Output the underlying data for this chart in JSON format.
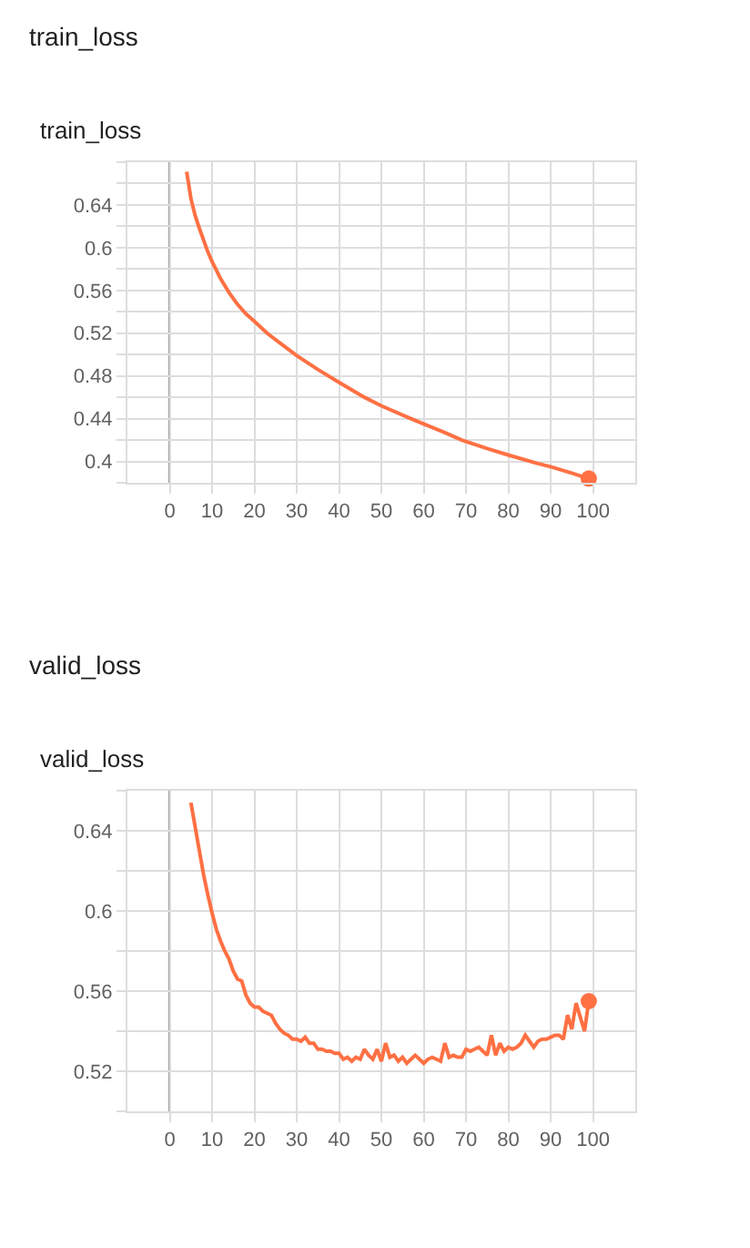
{
  "chart_data": [
    {
      "type": "line",
      "title": "train_loss",
      "subtitle": "train_loss",
      "x": [
        4,
        5,
        6,
        7,
        8,
        9,
        10,
        12,
        14,
        16,
        18,
        20,
        23,
        26,
        30,
        35,
        40,
        46,
        50,
        57,
        60,
        65,
        69,
        75,
        80,
        87,
        90,
        95,
        99
      ],
      "series": [
        {
          "color": "#ff7043",
          "values": [
            0.671,
            0.646,
            0.63,
            0.618,
            0.607,
            0.596,
            0.587,
            0.571,
            0.558,
            0.547,
            0.538,
            0.531,
            0.52,
            0.511,
            0.499,
            0.486,
            0.474,
            0.46,
            0.452,
            0.44,
            0.435,
            0.427,
            0.42,
            0.412,
            0.406,
            0.398,
            0.395,
            0.389,
            0.384
          ]
        },
        {
          "type": "scatter",
          "x": [
            99
          ],
          "values": [
            0.384
          ],
          "color": "#ff7043",
          "marker": "circle"
        }
      ],
      "xlim": [
        -10,
        110
      ],
      "xticks": [
        0,
        10,
        20,
        30,
        40,
        50,
        60,
        70,
        80,
        90,
        100
      ],
      "ylim": [
        0.38,
        0.68
      ],
      "yticks": [
        {
          "value": 0.38,
          "label": null
        },
        0.4,
        {
          "value": 0.42,
          "label": null
        },
        0.44,
        {
          "value": 0.46,
          "label": null
        },
        0.48,
        {
          "value": 0.5,
          "label": null
        },
        0.52,
        {
          "value": 0.54,
          "label": null
        },
        0.56,
        {
          "value": 0.58,
          "label": null
        },
        0.6,
        {
          "value": 0.62,
          "label": null
        },
        0.64,
        {
          "value": 0.66,
          "label": null
        },
        {
          "value": 0.68,
          "label": null
        }
      ],
      "grid": true,
      "ref_lines": [
        {
          "axis": "x",
          "value": 0,
          "color": "#9e9e9e"
        }
      ]
    },
    {
      "type": "line",
      "title": "valid_loss",
      "subtitle": "valid_loss",
      "x": [
        5,
        6,
        7,
        8,
        9,
        10,
        11,
        12,
        13,
        14,
        15,
        16,
        17,
        18,
        19,
        20,
        21,
        22,
        23,
        24,
        25,
        26,
        27,
        28,
        29,
        30,
        31,
        32,
        33,
        34,
        35,
        36,
        37,
        38,
        39,
        40,
        41,
        42,
        43,
        44,
        45,
        46,
        47,
        48,
        49,
        50,
        51,
        52,
        53,
        54,
        55,
        56,
        57,
        58,
        59,
        60,
        61,
        62,
        63,
        64,
        65,
        66,
        67,
        68,
        69,
        70,
        71,
        72,
        73,
        74,
        75,
        76,
        77,
        78,
        79,
        80,
        81,
        82,
        83,
        84,
        85,
        86,
        87,
        88,
        89,
        90,
        91,
        92,
        93,
        94,
        95,
        96,
        97,
        98,
        99
      ],
      "series": [
        {
          "color": "#ff7043",
          "values": [
            0.654,
            0.642,
            0.63,
            0.618,
            0.608,
            0.599,
            0.591,
            0.585,
            0.58,
            0.576,
            0.57,
            0.566,
            0.565,
            0.558,
            0.554,
            0.552,
            0.552,
            0.55,
            0.549,
            0.548,
            0.544,
            0.541,
            0.539,
            0.538,
            0.536,
            0.536,
            0.535,
            0.537,
            0.534,
            0.534,
            0.531,
            0.531,
            0.53,
            0.53,
            0.529,
            0.529,
            0.526,
            0.527,
            0.525,
            0.527,
            0.526,
            0.531,
            0.528,
            0.526,
            0.531,
            0.525,
            0.534,
            0.527,
            0.528,
            0.525,
            0.527,
            0.524,
            0.526,
            0.528,
            0.526,
            0.524,
            0.526,
            0.527,
            0.526,
            0.525,
            0.534,
            0.527,
            0.528,
            0.527,
            0.527,
            0.531,
            0.53,
            0.531,
            0.532,
            0.53,
            0.528,
            0.538,
            0.528,
            0.534,
            0.53,
            0.532,
            0.531,
            0.532,
            0.534,
            0.538,
            0.535,
            0.532,
            0.535,
            0.536,
            0.536,
            0.537,
            0.538,
            0.538,
            0.536,
            0.548,
            0.541,
            0.554,
            0.547,
            0.54,
            0.555
          ]
        },
        {
          "type": "scatter",
          "x": [
            99
          ],
          "values": [
            0.555
          ],
          "color": "#ff7043",
          "marker": "circle"
        }
      ],
      "xlim": [
        -10,
        110
      ],
      "xticks": [
        0,
        10,
        20,
        30,
        40,
        50,
        60,
        70,
        80,
        90,
        100
      ],
      "ylim": [
        0.5,
        0.66
      ],
      "yticks": [
        {
          "value": 0.5,
          "label": null
        },
        0.52,
        {
          "value": 0.54,
          "label": null
        },
        0.56,
        {
          "value": 0.58,
          "label": null
        },
        0.6,
        {
          "value": 0.62,
          "label": null
        },
        0.64,
        {
          "value": 0.66,
          "label": null
        }
      ],
      "grid": true,
      "ref_lines": [
        {
          "axis": "x",
          "value": 0,
          "color": "#9e9e9e"
        }
      ]
    }
  ]
}
